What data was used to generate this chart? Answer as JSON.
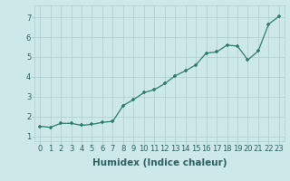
{
  "x": [
    0,
    1,
    2,
    3,
    4,
    5,
    6,
    7,
    8,
    9,
    10,
    11,
    12,
    13,
    14,
    15,
    16,
    17,
    18,
    19,
    20,
    21,
    22,
    23
  ],
  "y": [
    1.5,
    1.45,
    1.65,
    1.65,
    1.55,
    1.6,
    1.7,
    1.75,
    2.55,
    2.85,
    3.2,
    3.35,
    3.65,
    4.05,
    4.3,
    4.6,
    5.2,
    5.25,
    5.6,
    5.55,
    4.85,
    5.3,
    6.65,
    7.05
  ],
  "line_color": "#2e7d6e",
  "marker_color": "#2e7d6e",
  "bg_color": "#cce8e8",
  "grid_color": "#b0cccc",
  "xlabel": "Humidex (Indice chaleur)",
  "xlim": [
    -0.5,
    23.5
  ],
  "ylim": [
    0.75,
    7.6
  ],
  "yticks": [
    1,
    2,
    3,
    4,
    5,
    6,
    7
  ],
  "xticks": [
    0,
    1,
    2,
    3,
    4,
    5,
    6,
    7,
    8,
    9,
    10,
    11,
    12,
    13,
    14,
    15,
    16,
    17,
    18,
    19,
    20,
    21,
    22,
    23
  ],
  "font_color": "#2e6060",
  "tick_fontsize": 6,
  "label_fontsize": 7.5
}
